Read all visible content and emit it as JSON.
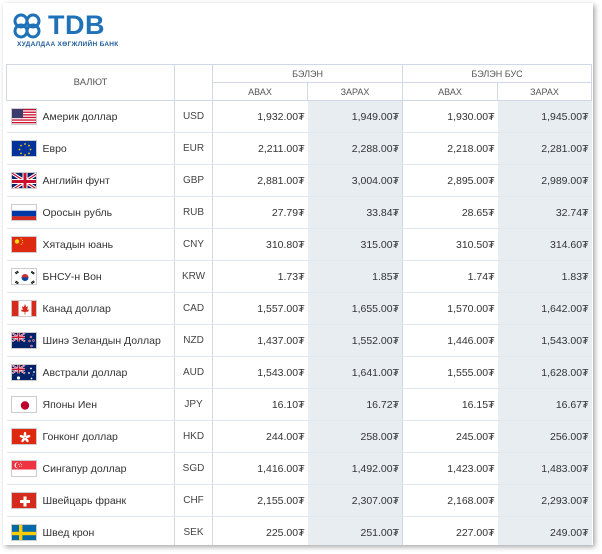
{
  "bank": {
    "brand": "TDB",
    "tagline": "ХУДАЛДАА ХӨГЖЛИЙН БАНК"
  },
  "headers": {
    "currency": "ВАЛЮТ",
    "cash": "БЭЛЭН",
    "noncash": "БЭЛЭН БУС",
    "buy": "АВАХ",
    "sell": "ЗАРАХ"
  },
  "rows": [
    {
      "flag": "us-flag-icon",
      "name": "Америк доллар",
      "code": "USD",
      "cash_buy": "1,932.00₮",
      "cash_sell": "1,949.00₮",
      "noncash_buy": "1,930.00₮",
      "noncash_sell": "1,945.00₮"
    },
    {
      "flag": "eu-flag-icon",
      "name": "Евро",
      "code": "EUR",
      "cash_buy": "2,211.00₮",
      "cash_sell": "2,288.00₮",
      "noncash_buy": "2,218.00₮",
      "noncash_sell": "2,281.00₮"
    },
    {
      "flag": "uk-flag-icon",
      "name": "Английн фунт",
      "code": "GBP",
      "cash_buy": "2,881.00₮",
      "cash_sell": "3,004.00₮",
      "noncash_buy": "2,895.00₮",
      "noncash_sell": "2,989.00₮"
    },
    {
      "flag": "ru-flag-icon",
      "name": "Оросын рубль",
      "code": "RUB",
      "cash_buy": "27.79₮",
      "cash_sell": "33.84₮",
      "noncash_buy": "28.65₮",
      "noncash_sell": "32.74₮"
    },
    {
      "flag": "cn-flag-icon",
      "name": "Хятадын юань",
      "code": "CNY",
      "cash_buy": "310.80₮",
      "cash_sell": "315.00₮",
      "noncash_buy": "310.50₮",
      "noncash_sell": "314.60₮"
    },
    {
      "flag": "kr-flag-icon",
      "name": "БНСУ-н Вон",
      "code": "KRW",
      "cash_buy": "1.73₮",
      "cash_sell": "1.85₮",
      "noncash_buy": "1.74₮",
      "noncash_sell": "1.83₮"
    },
    {
      "flag": "ca-flag-icon",
      "name": "Канад доллар",
      "code": "CAD",
      "cash_buy": "1,557.00₮",
      "cash_sell": "1,655.00₮",
      "noncash_buy": "1,570.00₮",
      "noncash_sell": "1,642.00₮"
    },
    {
      "flag": "nz-flag-icon",
      "name": "Шинэ Зеландын Доллар",
      "code": "NZD",
      "cash_buy": "1,437.00₮",
      "cash_sell": "1,552.00₮",
      "noncash_buy": "1,446.00₮",
      "noncash_sell": "1,543.00₮"
    },
    {
      "flag": "au-flag-icon",
      "name": "Австрали доллар",
      "code": "AUD",
      "cash_buy": "1,543.00₮",
      "cash_sell": "1,641.00₮",
      "noncash_buy": "1,555.00₮",
      "noncash_sell": "1,628.00₮"
    },
    {
      "flag": "jp-flag-icon",
      "name": "Японы Иен",
      "code": "JPY",
      "cash_buy": "16.10₮",
      "cash_sell": "16.72₮",
      "noncash_buy": "16.15₮",
      "noncash_sell": "16.67₮"
    },
    {
      "flag": "hk-flag-icon",
      "name": "Гонконг доллар",
      "code": "HKD",
      "cash_buy": "244.00₮",
      "cash_sell": "258.00₮",
      "noncash_buy": "245.00₮",
      "noncash_sell": "256.00₮"
    },
    {
      "flag": "sg-flag-icon",
      "name": "Сингапур доллар",
      "code": "SGD",
      "cash_buy": "1,416.00₮",
      "cash_sell": "1,492.00₮",
      "noncash_buy": "1,423.00₮",
      "noncash_sell": "1,483.00₮"
    },
    {
      "flag": "ch-flag-icon",
      "name": "Швейцарь франк",
      "code": "CHF",
      "cash_buy": "2,155.00₮",
      "cash_sell": "2,307.00₮",
      "noncash_buy": "2,168.00₮",
      "noncash_sell": "2,293.00₮"
    },
    {
      "flag": "se-flag-icon",
      "name": "Швед крон",
      "code": "SEK",
      "cash_buy": "225.00₮",
      "cash_sell": "251.00₮",
      "noncash_buy": "227.00₮",
      "noncash_sell": "249.00₮"
    }
  ]
}
